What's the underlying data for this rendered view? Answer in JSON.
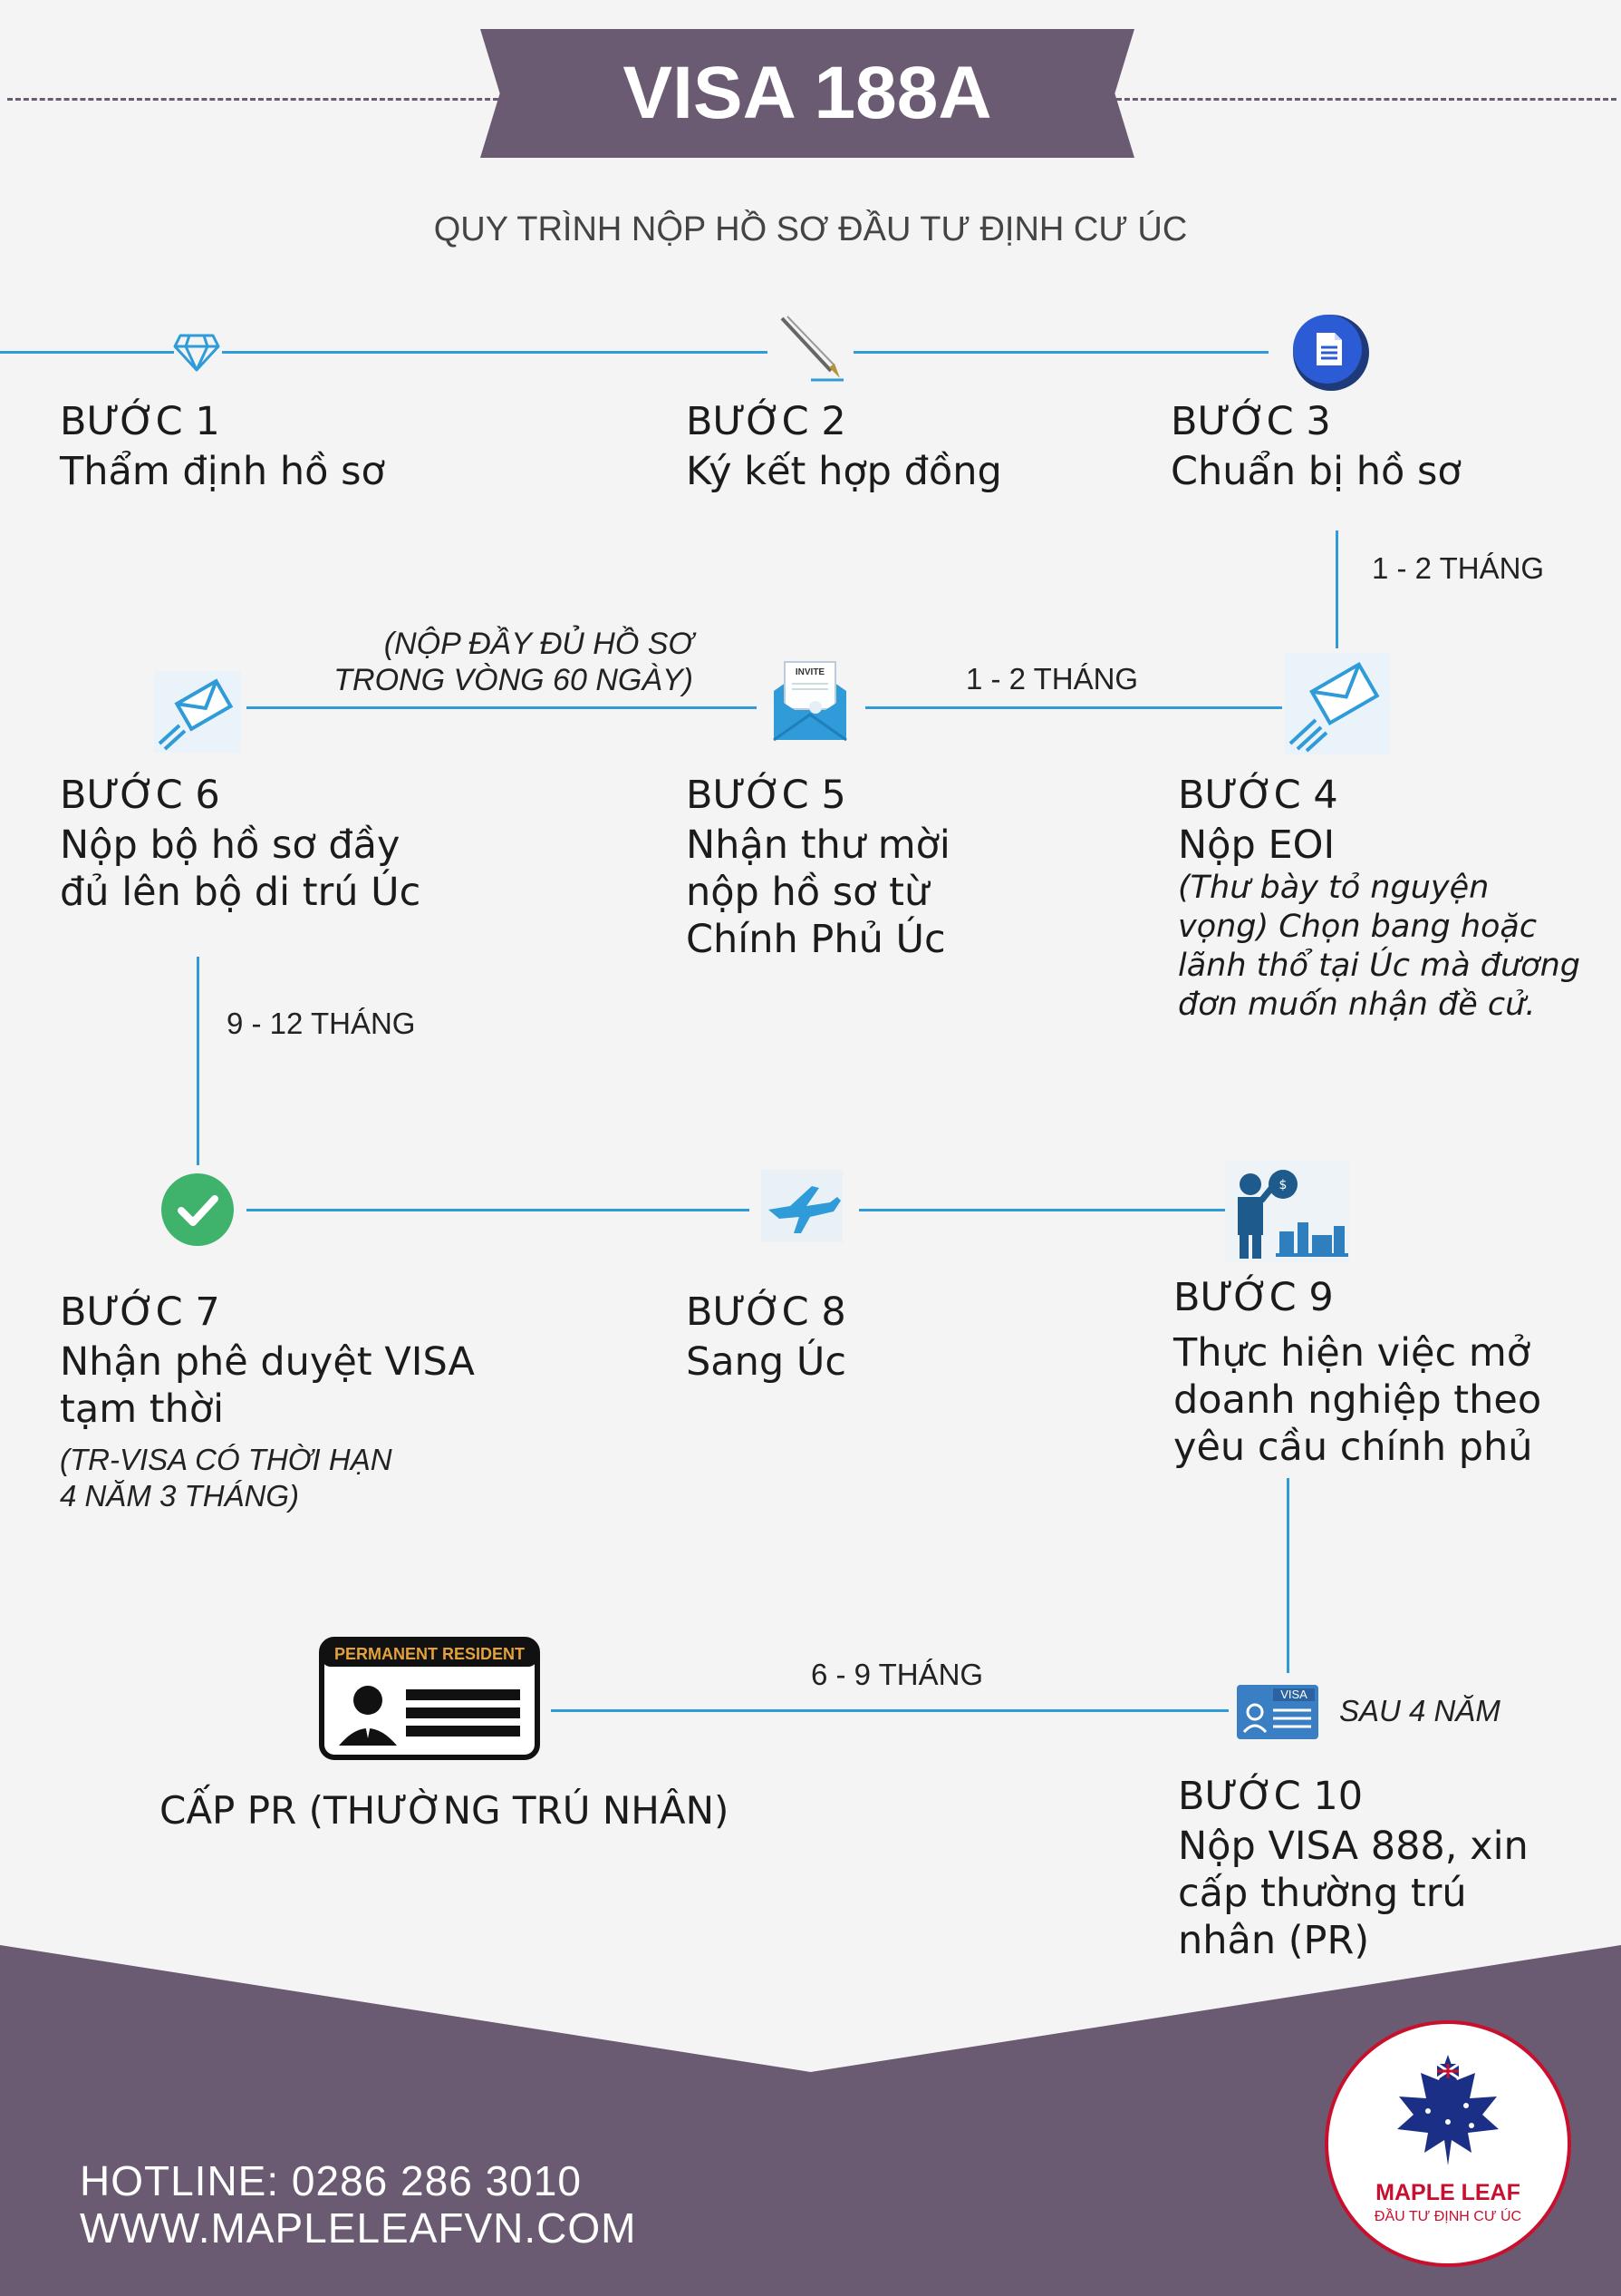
{
  "header": {
    "title": "VISA 188A",
    "subtitle": "QUY TRÌNH NỘP HỒ SƠ ĐẦU TƯ ĐỊNH CƯ ÚC"
  },
  "steps": [
    {
      "label": "BƯỚC 1",
      "desc": "Thẩm định hồ sơ",
      "icon": "diamond-icon"
    },
    {
      "label": "BƯỚC 2",
      "desc": "Ký kết hợp đồng",
      "icon": "pen-icon"
    },
    {
      "label": "BƯỚC 3",
      "desc": "Chuẩn bị hồ sơ",
      "icon": "document-icon"
    },
    {
      "label": "BƯỚC 4",
      "desc": "Nộp EOI",
      "note": "(Thư bày tỏ nguyện vọng) Chọn bang hoặc lãnh thổ tại Úc mà đương đơn muốn nhận đề cử.",
      "icon": "send-mail-icon"
    },
    {
      "label": "BƯỚC 5",
      "desc": "Nhận thư mời nộp hồ sơ từ Chính Phủ Úc",
      "icon": "invite-envelope-icon",
      "icon_text": "INVITE"
    },
    {
      "label": "BƯỚC 6",
      "desc": "Nộp bộ hồ sơ đầy đủ lên bộ di trú Úc",
      "icon": "send-mail-icon"
    },
    {
      "label": "BƯỚC 7",
      "desc": "Nhận phê duyệt VISA tạm thời",
      "note": "(TR-VISA CÓ THỜI HẠN 4 NĂM 3 THÁNG)",
      "icon": "check-circle-icon"
    },
    {
      "label": "BƯỚC 8",
      "desc": "Sang Úc",
      "icon": "airplane-icon"
    },
    {
      "label": "BƯỚC 9",
      "desc": "Thực hiện việc mở doanh nghiệp theo yêu cầu chính phủ",
      "icon": "businessman-icon"
    },
    {
      "label": "BƯỚC 10",
      "desc": "Nộp VISA 888, xin cấp thường trú nhân (PR)",
      "icon": "visa-card-icon",
      "icon_text": "VISA"
    }
  ],
  "durations": {
    "step3_to_4": "1 - 2 THÁNG",
    "step4_to_5": "1 - 2 THÁNG",
    "step5_to_6": "(NỘP ĐẦY ĐỦ HỒ SƠ TRONG VÒNG 60 NGÀY)",
    "step6_to_7": "9 - 12 THÁNG",
    "step10_after": "SAU 4 NĂM",
    "step10_to_pr": "6 - 9 THÁNG"
  },
  "final": {
    "label": "CẤP PR (THƯỜNG TRÚ NHÂN)",
    "card_text": "PERMANENT RESIDENT",
    "icon": "id-card-icon"
  },
  "footer": {
    "hotline": "HOTLINE: 0286 286 3010",
    "website": "WWW.MAPLELEAFVN.COM"
  },
  "logo": {
    "name": "MAPLE LEAF",
    "tagline": "ĐẦU TƯ ĐỊNH CƯ ÚC"
  },
  "colors": {
    "accent": "#6b5b72",
    "line": "#2f9bd8",
    "check": "#3fb26b",
    "logo_red": "#c8102e"
  }
}
